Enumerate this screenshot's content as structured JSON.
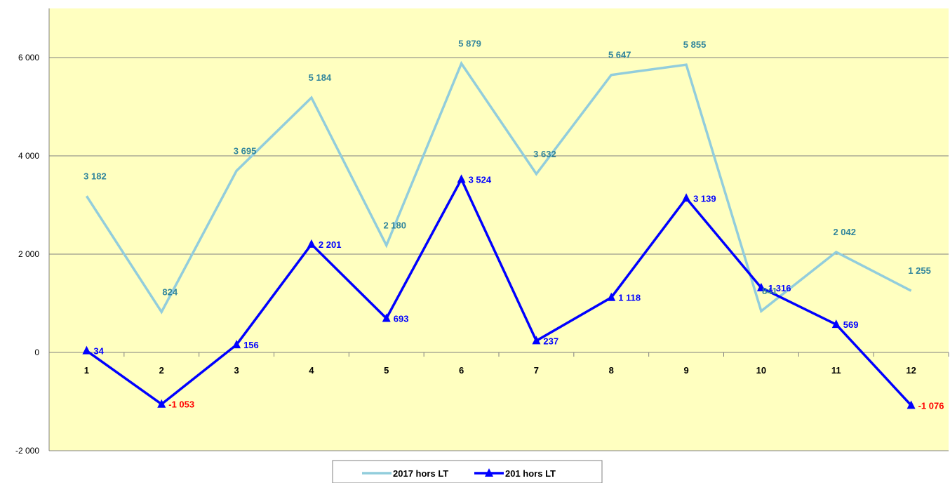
{
  "chart_data": {
    "type": "line",
    "title": "",
    "xlabel": "",
    "ylabel": "",
    "x": [
      "1",
      "2",
      "3",
      "4",
      "5",
      "6",
      "7",
      "8",
      "9",
      "10",
      "11",
      "12"
    ],
    "ylim": [
      -2000,
      7000
    ],
    "yticks": [
      -2000,
      0,
      2000,
      4000,
      6000
    ],
    "ytick_labels": [
      "-2 000",
      "0",
      "2 000",
      "4 000",
      "6 000"
    ],
    "grid": true,
    "legend": "bottom",
    "background_color": "#FFFFC0",
    "series": [
      {
        "name": "2017 hors LT",
        "color": "#92CDDC",
        "label_color": "#31859C",
        "marker": "none",
        "values": [
          3182,
          824,
          3695,
          5184,
          2180,
          5879,
          3632,
          5647,
          5855,
          841,
          2042,
          1255
        ],
        "labels": [
          "3 182",
          "824",
          "3 695",
          "5 184",
          "2 180",
          "5 879",
          "3 632",
          "5 647",
          "5 855",
          "841",
          "2 042",
          "1 255"
        ]
      },
      {
        "name": "201 hors LT",
        "color": "#0000FF",
        "label_color": "#0000FF",
        "negative_label_color": "#FF0000",
        "marker": "triangle",
        "values": [
          34,
          -1053,
          156,
          2201,
          693,
          3524,
          237,
          1118,
          3139,
          1316,
          569,
          -1076
        ],
        "labels": [
          "34",
          "-1 053",
          "156",
          "2 201",
          "693",
          "3 524",
          "237",
          "1 118",
          "3 139",
          "1 316",
          "569",
          "-1 076"
        ]
      }
    ]
  }
}
